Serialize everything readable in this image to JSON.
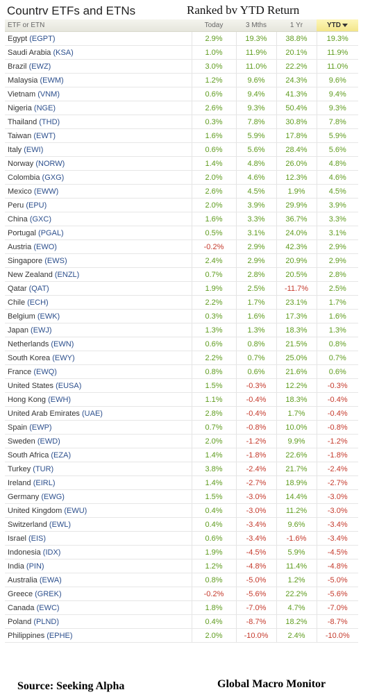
{
  "header": {
    "title": "Countrv ETFs and ETNs",
    "subtitle": "Ranked bv YTD Return"
  },
  "columns": [
    "ETF or ETN",
    "Today",
    "3 Mths",
    "1 Yr",
    "YTD"
  ],
  "sort_icon": "sort-down-arrow-icon",
  "colors": {
    "positive": "#5f9c1f",
    "negative": "#c53a2c",
    "ticker": "#2c4f8d",
    "sorted_header": "#f3e68a"
  },
  "rows": [
    {
      "name": "Egypt",
      "ticker": "(EGPT)",
      "today": "2.9%",
      "m3": "19.3%",
      "yr1": "38.8%",
      "ytd": "19.3%"
    },
    {
      "name": "Saudi Arabia",
      "ticker": "(KSA)",
      "today": "1.0%",
      "m3": "11.9%",
      "yr1": "20.1%",
      "ytd": "11.9%"
    },
    {
      "name": "Brazil",
      "ticker": "(EWZ)",
      "today": "3.0%",
      "m3": "11.0%",
      "yr1": "22.2%",
      "ytd": "11.0%"
    },
    {
      "name": "Malaysia",
      "ticker": "(EWM)",
      "today": "1.2%",
      "m3": "9.6%",
      "yr1": "24.3%",
      "ytd": "9.6%"
    },
    {
      "name": "Vietnam",
      "ticker": "(VNM)",
      "today": "0.6%",
      "m3": "9.4%",
      "yr1": "41.3%",
      "ytd": "9.4%"
    },
    {
      "name": "Nigeria",
      "ticker": "(NGE)",
      "today": "2.6%",
      "m3": "9.3%",
      "yr1": "50.4%",
      "ytd": "9.3%"
    },
    {
      "name": "Thailand",
      "ticker": "(THD)",
      "today": "0.3%",
      "m3": "7.8%",
      "yr1": "30.8%",
      "ytd": "7.8%"
    },
    {
      "name": "Taiwan",
      "ticker": "(EWT)",
      "today": "1.6%",
      "m3": "5.9%",
      "yr1": "17.8%",
      "ytd": "5.9%"
    },
    {
      "name": "Italy",
      "ticker": "(EWI)",
      "today": "0.6%",
      "m3": "5.6%",
      "yr1": "28.4%",
      "ytd": "5.6%"
    },
    {
      "name": "Norway",
      "ticker": "(NORW)",
      "today": "1.4%",
      "m3": "4.8%",
      "yr1": "26.0%",
      "ytd": "4.8%"
    },
    {
      "name": "Colombia",
      "ticker": "(GXG)",
      "today": "2.0%",
      "m3": "4.6%",
      "yr1": "12.3%",
      "ytd": "4.6%"
    },
    {
      "name": "Mexico",
      "ticker": "(EWW)",
      "today": "2.6%",
      "m3": "4.5%",
      "yr1": "1.9%",
      "ytd": "4.5%"
    },
    {
      "name": "Peru",
      "ticker": "(EPU)",
      "today": "2.0%",
      "m3": "3.9%",
      "yr1": "29.9%",
      "ytd": "3.9%"
    },
    {
      "name": "China",
      "ticker": "(GXC)",
      "today": "1.6%",
      "m3": "3.3%",
      "yr1": "36.7%",
      "ytd": "3.3%"
    },
    {
      "name": "Portugal",
      "ticker": "(PGAL)",
      "today": "0.5%",
      "m3": "3.1%",
      "yr1": "24.0%",
      "ytd": "3.1%"
    },
    {
      "name": "Austria",
      "ticker": "(EWO)",
      "today": "-0.2%",
      "m3": "2.9%",
      "yr1": "42.3%",
      "ytd": "2.9%"
    },
    {
      "name": "Singapore",
      "ticker": "(EWS)",
      "today": "2.4%",
      "m3": "2.9%",
      "yr1": "20.9%",
      "ytd": "2.9%"
    },
    {
      "name": "New Zealand",
      "ticker": "(ENZL)",
      "today": "0.7%",
      "m3": "2.8%",
      "yr1": "20.5%",
      "ytd": "2.8%"
    },
    {
      "name": "Qatar",
      "ticker": "(QAT)",
      "today": "1.9%",
      "m3": "2.5%",
      "yr1": "-11.7%",
      "ytd": "2.5%"
    },
    {
      "name": "Chile",
      "ticker": "(ECH)",
      "today": "2.2%",
      "m3": "1.7%",
      "yr1": "23.1%",
      "ytd": "1.7%"
    },
    {
      "name": "Belgium",
      "ticker": "(EWK)",
      "today": "0.3%",
      "m3": "1.6%",
      "yr1": "17.3%",
      "ytd": "1.6%"
    },
    {
      "name": "Japan",
      "ticker": "(EWJ)",
      "today": "1.3%",
      "m3": "1.3%",
      "yr1": "18.3%",
      "ytd": "1.3%"
    },
    {
      "name": "Netherlands",
      "ticker": "(EWN)",
      "today": "0.6%",
      "m3": "0.8%",
      "yr1": "21.5%",
      "ytd": "0.8%"
    },
    {
      "name": "South Korea",
      "ticker": "(EWY)",
      "today": "2.2%",
      "m3": "0.7%",
      "yr1": "25.0%",
      "ytd": "0.7%"
    },
    {
      "name": "France",
      "ticker": "(EWQ)",
      "today": "0.8%",
      "m3": "0.6%",
      "yr1": "21.6%",
      "ytd": "0.6%"
    },
    {
      "name": "United States",
      "ticker": "(EUSA)",
      "today": "1.5%",
      "m3": "-0.3%",
      "yr1": "12.2%",
      "ytd": "-0.3%"
    },
    {
      "name": "Hong Kong",
      "ticker": "(EWH)",
      "today": "1.1%",
      "m3": "-0.4%",
      "yr1": "18.3%",
      "ytd": "-0.4%"
    },
    {
      "name": "United Arab Emirates",
      "ticker": "(UAE)",
      "today": "2.8%",
      "m3": "-0.4%",
      "yr1": "1.7%",
      "ytd": "-0.4%"
    },
    {
      "name": "Spain",
      "ticker": "(EWP)",
      "today": "0.7%",
      "m3": "-0.8%",
      "yr1": "10.0%",
      "ytd": "-0.8%"
    },
    {
      "name": "Sweden",
      "ticker": "(EWD)",
      "today": "2.0%",
      "m3": "-1.2%",
      "yr1": "9.9%",
      "ytd": "-1.2%"
    },
    {
      "name": "South Africa",
      "ticker": "(EZA)",
      "today": "1.4%",
      "m3": "-1.8%",
      "yr1": "22.6%",
      "ytd": "-1.8%"
    },
    {
      "name": "Turkey",
      "ticker": "(TUR)",
      "today": "3.8%",
      "m3": "-2.4%",
      "yr1": "21.7%",
      "ytd": "-2.4%"
    },
    {
      "name": "Ireland",
      "ticker": "(EIRL)",
      "today": "1.4%",
      "m3": "-2.7%",
      "yr1": "18.9%",
      "ytd": "-2.7%"
    },
    {
      "name": "Germany",
      "ticker": "(EWG)",
      "today": "1.5%",
      "m3": "-3.0%",
      "yr1": "14.4%",
      "ytd": "-3.0%"
    },
    {
      "name": "United Kingdom",
      "ticker": "(EWU)",
      "today": "0.4%",
      "m3": "-3.0%",
      "yr1": "11.2%",
      "ytd": "-3.0%"
    },
    {
      "name": "Switzerland",
      "ticker": "(EWL)",
      "today": "0.4%",
      "m3": "-3.4%",
      "yr1": "9.6%",
      "ytd": "-3.4%"
    },
    {
      "name": "Israel",
      "ticker": "(EIS)",
      "today": "0.6%",
      "m3": "-3.4%",
      "yr1": "-1.6%",
      "ytd": "-3.4%"
    },
    {
      "name": "Indonesia",
      "ticker": "(IDX)",
      "today": "1.9%",
      "m3": "-4.5%",
      "yr1": "5.9%",
      "ytd": "-4.5%"
    },
    {
      "name": "India",
      "ticker": "(PIN)",
      "today": "1.2%",
      "m3": "-4.8%",
      "yr1": "11.4%",
      "ytd": "-4.8%"
    },
    {
      "name": "Australia",
      "ticker": "(EWA)",
      "today": "0.8%",
      "m3": "-5.0%",
      "yr1": "1.2%",
      "ytd": "-5.0%"
    },
    {
      "name": "Greece",
      "ticker": "(GREK)",
      "today": "-0.2%",
      "m3": "-5.6%",
      "yr1": "22.2%",
      "ytd": "-5.6%"
    },
    {
      "name": "Canada",
      "ticker": "(EWC)",
      "today": "1.8%",
      "m3": "-7.0%",
      "yr1": "4.7%",
      "ytd": "-7.0%"
    },
    {
      "name": "Poland",
      "ticker": "(PLND)",
      "today": "0.4%",
      "m3": "-8.7%",
      "yr1": "18.2%",
      "ytd": "-8.7%"
    },
    {
      "name": "Philippines",
      "ticker": "(EPHE)",
      "today": "2.0%",
      "m3": "-10.0%",
      "yr1": "2.4%",
      "ytd": "-10.0%"
    }
  ],
  "footer": {
    "source": "Source:  Seeking Alpha",
    "brand": "Global Macro Monitor"
  }
}
